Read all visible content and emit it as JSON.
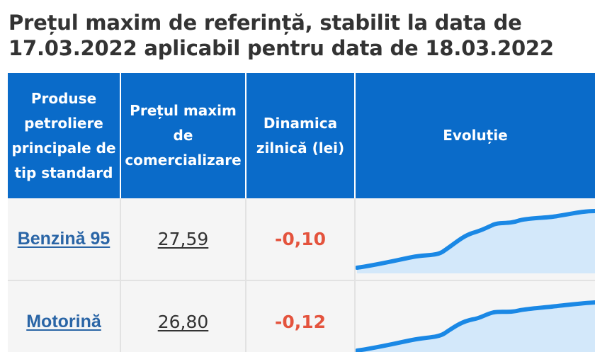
{
  "title": "Prețul maxim de referință, stabilit la data de 17.03.2022 aplicabil pentru data de 18.03.2022",
  "table": {
    "headers": {
      "product": [
        "Produse",
        "petroliere",
        "principale de",
        "tip standard"
      ],
      "price": [
        "Prețul maxim",
        "de",
        "comercializare"
      ],
      "dynamic": [
        "Dinamica",
        "zilnică (lei)"
      ],
      "evolution": "Evoluție"
    },
    "rows": [
      {
        "product": "Benzină 95",
        "price": "27,59",
        "dynamic": "-0,10"
      },
      {
        "product": "Motorină",
        "price": "26,80",
        "dynamic": "-0,12"
      }
    ]
  },
  "colors": {
    "header_bg": "#0a6bc9",
    "header_text": "#ffffff",
    "link": "#2a65a6",
    "negative": "#e4533d",
    "sparkline": "#1a88e5",
    "sparkline_fill": "#d3e8fa"
  }
}
